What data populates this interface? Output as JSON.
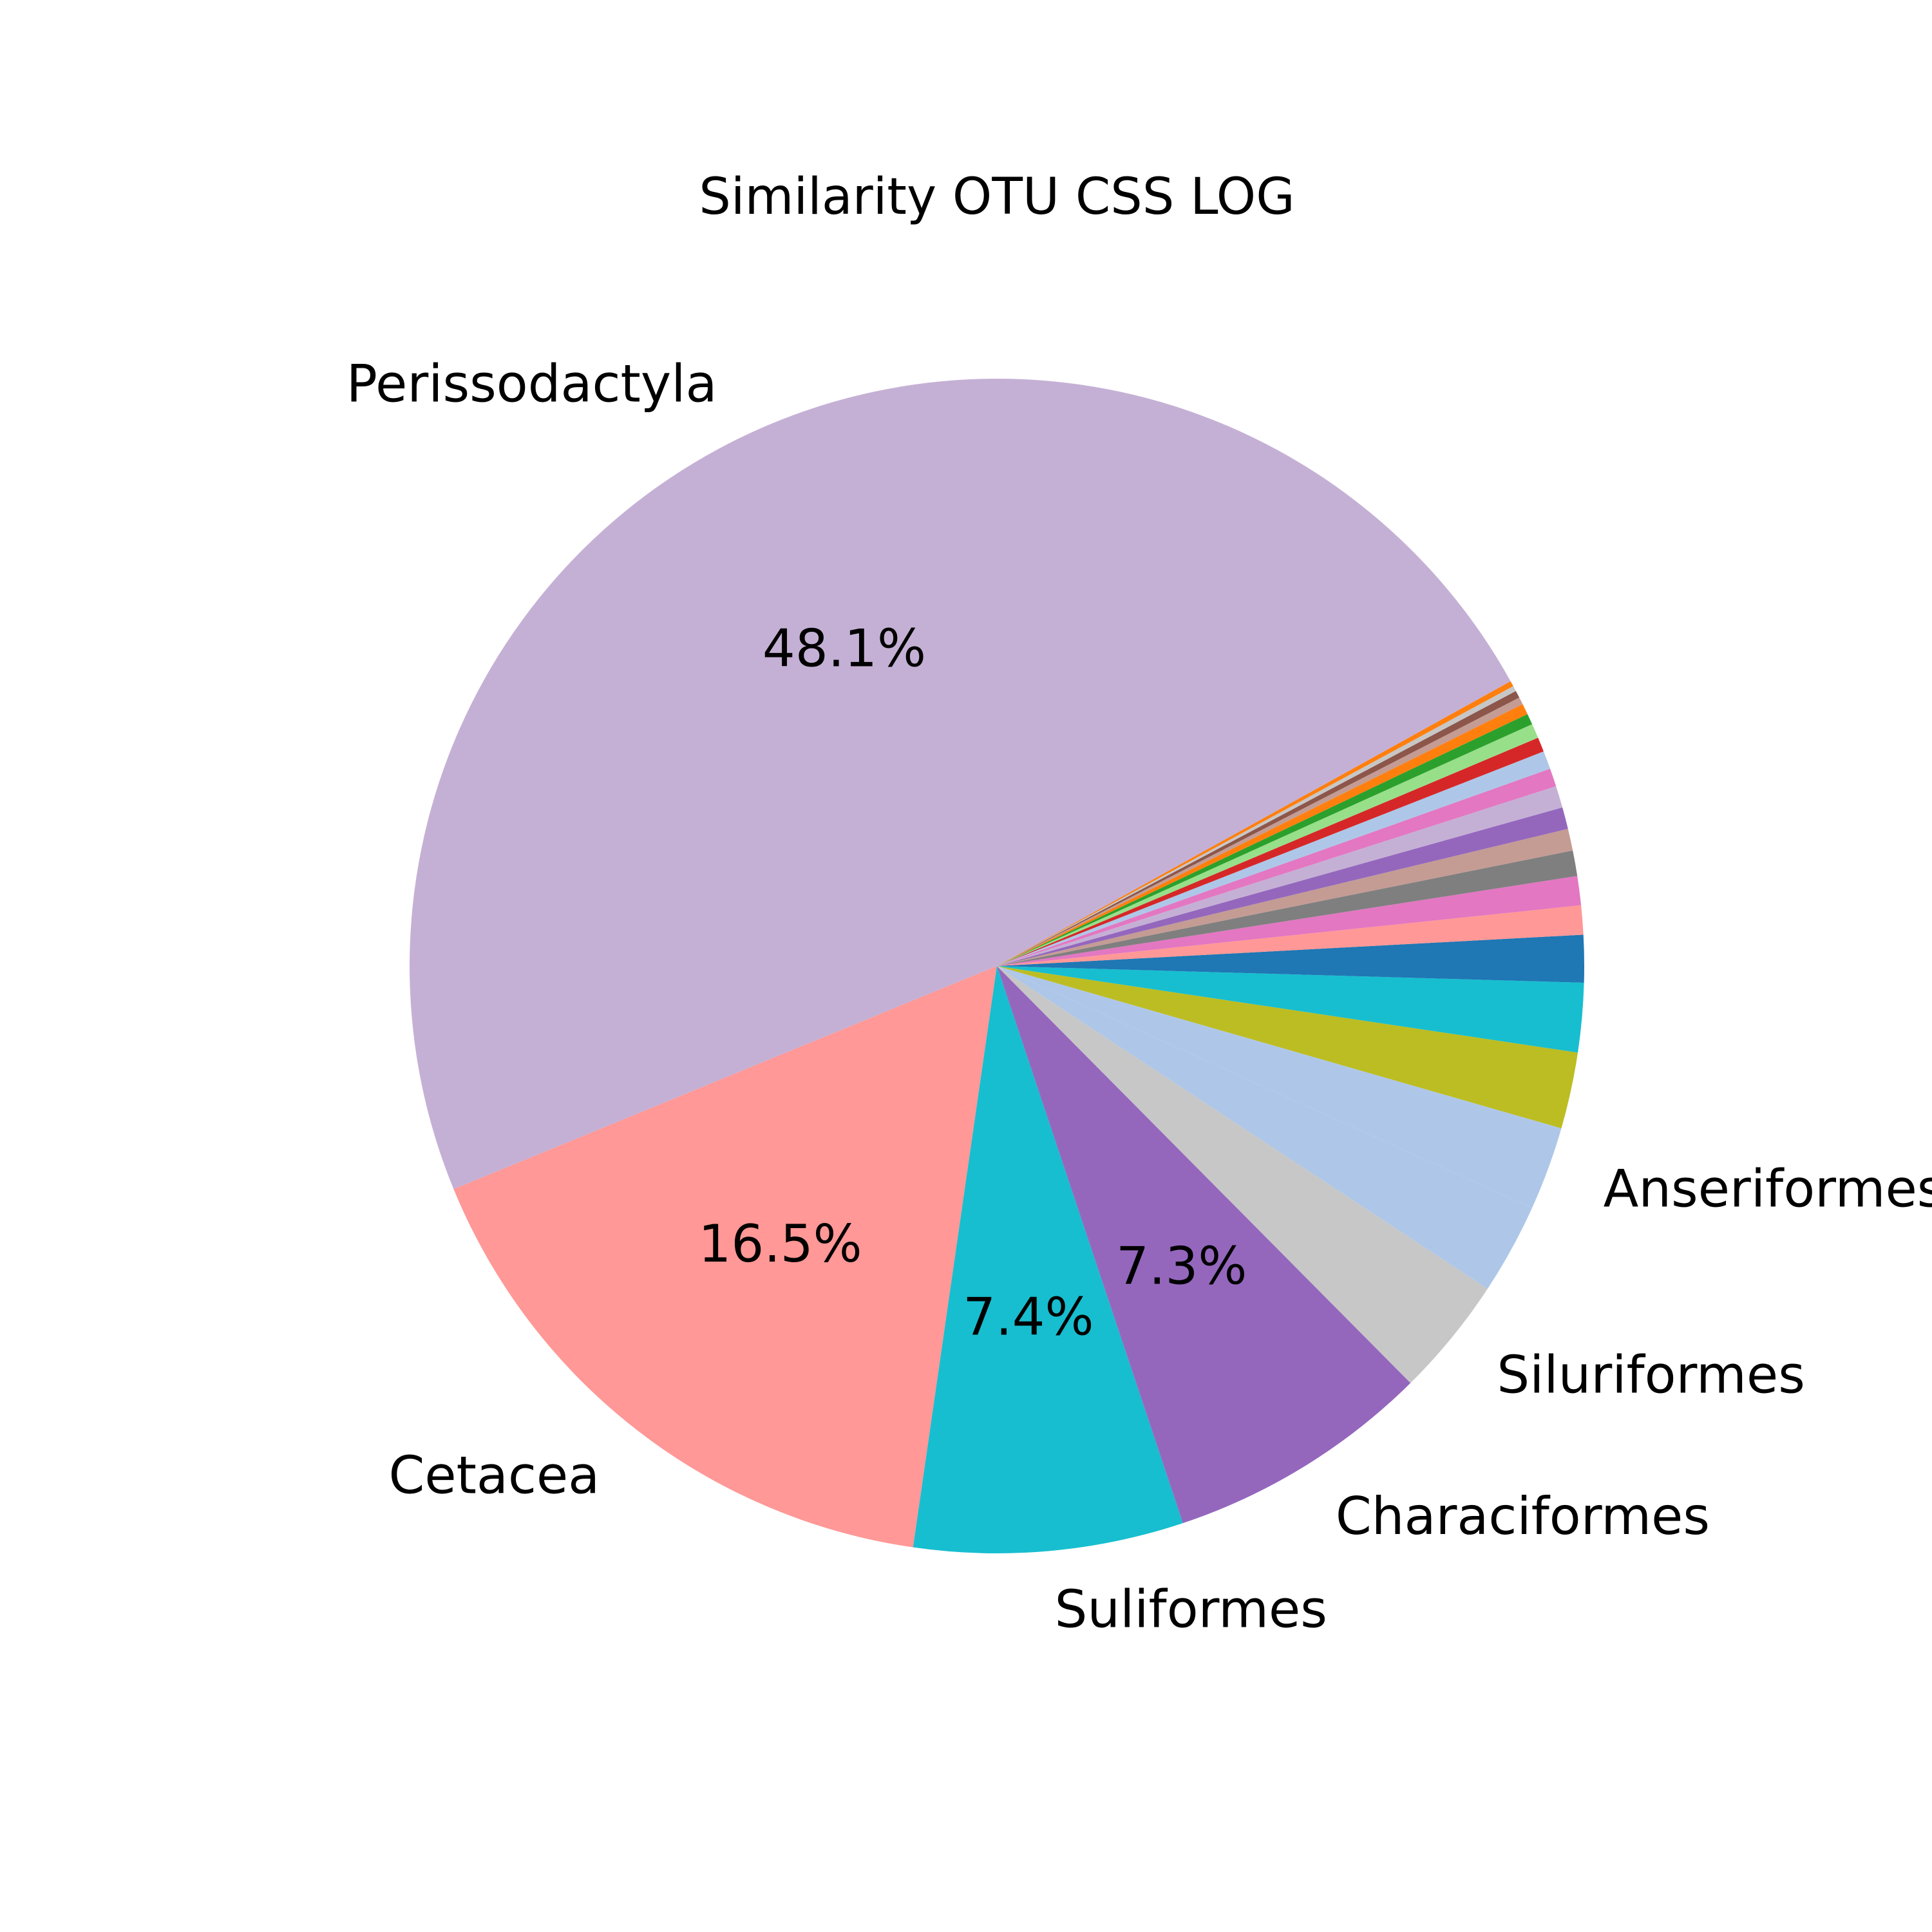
{
  "chart_data": {
    "type": "pie",
    "title": "Similarity OTU CSS LOG",
    "start_angle_deg": 29,
    "direction": "counterclockwise",
    "slices": [
      {
        "label": "Perissodactyla",
        "value": 48.1,
        "pct_label": "48.1%",
        "color": "#c5b0d5"
      },
      {
        "label": "Cetacea",
        "value": 16.5,
        "pct_label": "16.5%",
        "color": "#ff9896"
      },
      {
        "label": "Suliformes",
        "value": 7.4,
        "pct_label": "7.4%",
        "color": "#17becf"
      },
      {
        "label": "Characiformes",
        "value": 7.3,
        "pct_label": "7.3%",
        "color": "#9467bd"
      },
      {
        "label": "Siluriformes",
        "value": 3.3,
        "pct_label": "",
        "color": "#c7c7c7"
      },
      {
        "label": "",
        "value": 2.5,
        "pct_label": "",
        "color": "#aec7e8"
      },
      {
        "label": "Anseriformes",
        "value": 2.3,
        "pct_label": "",
        "color": "#aec7e8"
      },
      {
        "label": "",
        "value": 2.1,
        "pct_label": "",
        "color": "#bcbd22"
      },
      {
        "label": "",
        "value": 1.9,
        "pct_label": "",
        "color": "#17becf"
      },
      {
        "label": "",
        "value": 1.3,
        "pct_label": "",
        "color": "#1f77b4"
      },
      {
        "label": "",
        "value": 0.8,
        "pct_label": "",
        "color": "#ff9896"
      },
      {
        "label": "",
        "value": 0.8,
        "pct_label": "",
        "color": "#e377c2"
      },
      {
        "label": "",
        "value": 0.7,
        "pct_label": "",
        "color": "#7f7f7f"
      },
      {
        "label": "",
        "value": 0.6,
        "pct_label": "",
        "color": "#c49c94"
      },
      {
        "label": "",
        "value": 0.6,
        "pct_label": "",
        "color": "#9467bd"
      },
      {
        "label": "",
        "value": 0.6,
        "pct_label": "",
        "color": "#c5b0d5"
      },
      {
        "label": "",
        "value": 0.5,
        "pct_label": "",
        "color": "#e377c2"
      },
      {
        "label": "",
        "value": 0.5,
        "pct_label": "",
        "color": "#aec7e8"
      },
      {
        "label": "",
        "value": 0.4,
        "pct_label": "",
        "color": "#d62728"
      },
      {
        "label": "",
        "value": 0.4,
        "pct_label": "",
        "color": "#98df8a"
      },
      {
        "label": "",
        "value": 0.3,
        "pct_label": "",
        "color": "#2ca02c"
      },
      {
        "label": "",
        "value": 0.3,
        "pct_label": "",
        "color": "#ff7f0e"
      },
      {
        "label": "",
        "value": 0.2,
        "pct_label": "",
        "color": "#c49c94"
      },
      {
        "label": "",
        "value": 0.2,
        "pct_label": "",
        "color": "#8c564b"
      },
      {
        "label": "",
        "value": 0.15,
        "pct_label": "",
        "color": "#c7c7c7"
      },
      {
        "label": "",
        "value": 0.15,
        "pct_label": "",
        "color": "#ff7f0e"
      }
    ]
  }
}
